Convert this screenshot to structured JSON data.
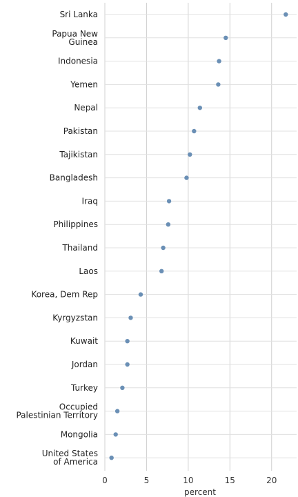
{
  "chart_data": {
    "type": "scatter",
    "title": "",
    "xlabel": "percent",
    "ylabel": "",
    "xlim": [
      0,
      23
    ],
    "xticks": [
      0,
      5,
      10,
      15,
      20
    ],
    "grid": true,
    "marker_color": "#6a8fb5",
    "categories": [
      "Sri Lanka",
      "Papua New Guinea",
      "Indonesia",
      "Yemen",
      "Nepal",
      "Pakistan",
      "Tajikistan",
      "Bangladesh",
      "Iraq",
      "Philippines",
      "Thailand",
      "Laos",
      "Korea, Dem Rep",
      "Kyrgyzstan",
      "Kuwait",
      "Jordan",
      "Turkey",
      "Occupied Palestinian Territory",
      "Mongolia",
      "United States of America"
    ],
    "category_lines": [
      [
        "Sri Lanka"
      ],
      [
        "Papua New",
        "Guinea"
      ],
      [
        "Indonesia"
      ],
      [
        "Yemen"
      ],
      [
        "Nepal"
      ],
      [
        "Pakistan"
      ],
      [
        "Tajikistan"
      ],
      [
        "Bangladesh"
      ],
      [
        "Iraq"
      ],
      [
        "Philippines"
      ],
      [
        "Thailand"
      ],
      [
        "Laos"
      ],
      [
        "Korea, Dem Rep"
      ],
      [
        "Kyrgyzstan"
      ],
      [
        "Kuwait"
      ],
      [
        "Jordan"
      ],
      [
        "Turkey"
      ],
      [
        "Occupied",
        "Palestinian Territory"
      ],
      [
        "Mongolia"
      ],
      [
        "United States",
        "of America"
      ]
    ],
    "values": [
      21.7,
      14.5,
      13.7,
      13.6,
      11.4,
      10.7,
      10.2,
      9.8,
      7.7,
      7.6,
      7.0,
      6.8,
      4.3,
      3.1,
      2.7,
      2.7,
      2.1,
      1.5,
      1.3,
      0.8
    ]
  }
}
